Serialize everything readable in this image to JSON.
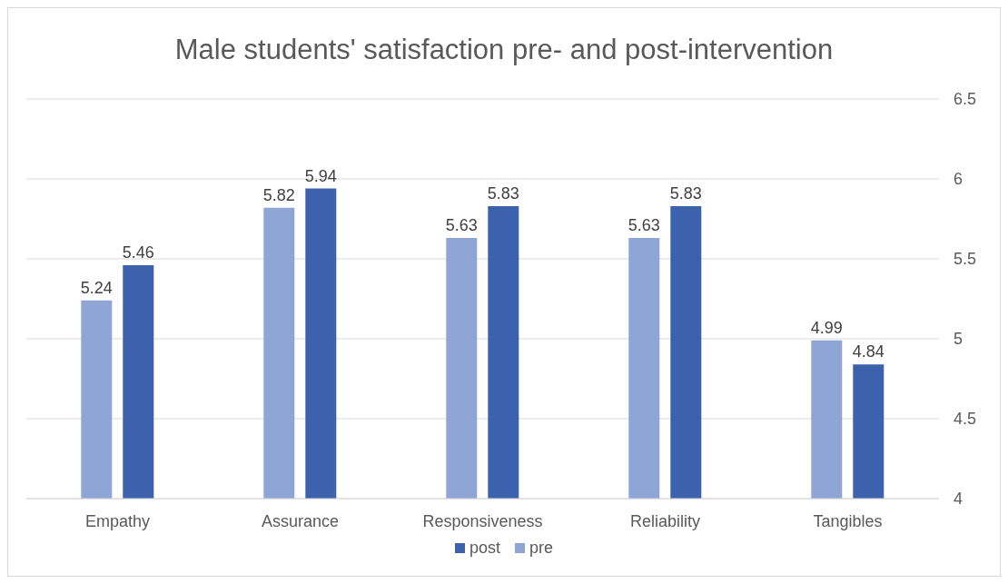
{
  "chart_data": {
    "type": "bar",
    "title": "Male students' satisfaction pre- and post-intervention",
    "categories": [
      "Empathy",
      "Assurance",
      "Responsiveness",
      "Reliability",
      "Tangibles"
    ],
    "series": [
      {
        "name": "pre",
        "color": "#8fa5d6",
        "values": [
          5.24,
          5.82,
          5.63,
          5.63,
          4.99
        ]
      },
      {
        "name": "post",
        "color": "#3c62ad",
        "values": [
          5.46,
          5.94,
          5.83,
          5.83,
          4.84
        ]
      }
    ],
    "ylim": [
      4,
      6.5
    ],
    "yticks": [
      4,
      4.5,
      5,
      5.5,
      6,
      6.5
    ],
    "grid": "y",
    "legend": "bottom",
    "data_labels": true
  }
}
